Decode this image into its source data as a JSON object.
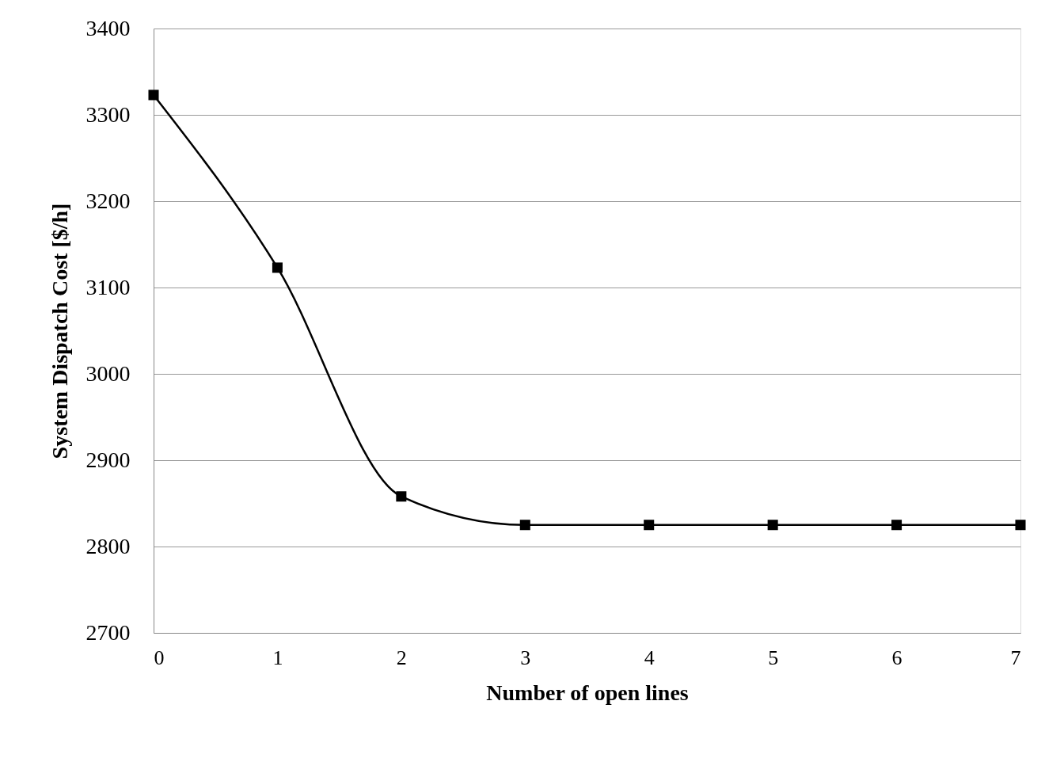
{
  "chart_data": {
    "type": "line",
    "xlabel": "Number of open lines",
    "ylabel": "System Dispatch Cost [$/h]",
    "x": [
      0,
      1,
      2,
      3,
      4,
      5,
      6,
      7
    ],
    "series": [
      {
        "color": "#000000",
        "values": [
          3323,
          3123,
          2858,
          2825,
          2825,
          2825,
          2825,
          2825
        ]
      }
    ],
    "xlim": [
      0,
      7
    ],
    "xticks": [
      0,
      1,
      2,
      3,
      4,
      5,
      6,
      7
    ],
    "ylim": [
      2700,
      3400
    ],
    "yticks": [
      2700,
      2800,
      2900,
      3000,
      3100,
      3200,
      3300,
      3400
    ],
    "grid": "y",
    "marker": "square",
    "line_style": "solid"
  }
}
